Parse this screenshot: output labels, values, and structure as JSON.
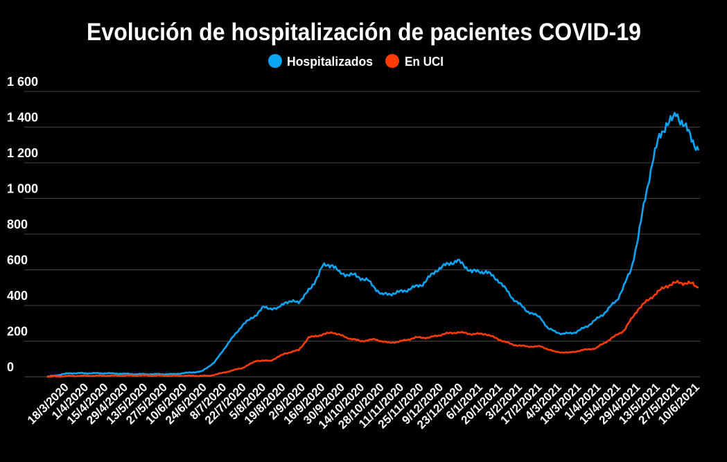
{
  "chart_data": {
    "type": "line",
    "title": "Evolución de hospitalización de pacientes COVID-19",
    "xlabel": "",
    "ylabel": "",
    "x_unit": "days since 18/3/2020",
    "ylim": [
      0,
      1600
    ],
    "grid": true,
    "legend_position": "top-center",
    "y_ticks": [
      {
        "value": 0,
        "label": "0"
      },
      {
        "value": 200,
        "label": "200"
      },
      {
        "value": 400,
        "label": "400"
      },
      {
        "value": 600,
        "label": "600"
      },
      {
        "value": 800,
        "label": "800"
      },
      {
        "value": 1000,
        "label": "1 000"
      },
      {
        "value": 1200,
        "label": "1 200"
      },
      {
        "value": 1400,
        "label": "1 400"
      },
      {
        "value": 1600,
        "label": "1 600"
      }
    ],
    "x_tick_labels": [
      "18/3/2020",
      "1/4/2020",
      "15/4/2020",
      "29/4/2020",
      "13/5/2020",
      "27/5/2020",
      "10/6/2020",
      "24/6/2020",
      "8/7/2020",
      "22/7/2020",
      "5/8/2020",
      "19/8/2020",
      "2/9/2020",
      "16/9/2020",
      "30/9/2020",
      "14/10/2020",
      "28/10/2020",
      "11/11/2020",
      "25/11/2020",
      "9/12/2020",
      "23/12/2020",
      "6/1/2021",
      "20/1/2021",
      "3/2/2021",
      "17/2/2021",
      "4/3/2021",
      "18/3/2021",
      "1/4/2021",
      "15/4/2021",
      "29/4/2021",
      "13/5/2021",
      "27/5/2021",
      "10/6/2021"
    ],
    "series": [
      {
        "name": "Hospitalizados",
        "color": "#0aa5f5",
        "points": [
          [
            -16,
            0
          ],
          [
            0,
            20
          ],
          [
            25,
            20
          ],
          [
            49,
            15
          ],
          [
            74,
            15
          ],
          [
            94,
            30
          ],
          [
            103,
            80
          ],
          [
            113,
            190
          ],
          [
            123,
            290
          ],
          [
            133,
            350
          ],
          [
            138,
            390
          ],
          [
            148,
            380
          ],
          [
            153,
            420
          ],
          [
            163,
            420
          ],
          [
            172,
            500
          ],
          [
            180,
            620
          ],
          [
            187,
            630
          ],
          [
            192,
            580
          ],
          [
            202,
            570
          ],
          [
            212,
            540
          ],
          [
            222,
            460
          ],
          [
            232,
            470
          ],
          [
            241,
            490
          ],
          [
            251,
            520
          ],
          [
            261,
            600
          ],
          [
            271,
            640
          ],
          [
            276,
            650
          ],
          [
            286,
            590
          ],
          [
            296,
            590
          ],
          [
            305,
            540
          ],
          [
            315,
            440
          ],
          [
            325,
            370
          ],
          [
            335,
            330
          ],
          [
            340,
            270
          ],
          [
            350,
            240
          ],
          [
            360,
            250
          ],
          [
            369,
            290
          ],
          [
            379,
            350
          ],
          [
            389,
            430
          ],
          [
            394,
            510
          ],
          [
            399,
            600
          ],
          [
            404,
            780
          ],
          [
            409,
            1000
          ],
          [
            414,
            1200
          ],
          [
            419,
            1340
          ],
          [
            424,
            1420
          ],
          [
            429,
            1440
          ],
          [
            431,
            1480
          ],
          [
            436,
            1420
          ],
          [
            441,
            1350
          ],
          [
            447,
            1270
          ]
        ]
      },
      {
        "name": "En UCI",
        "color": "#ff3b05",
        "points": [
          [
            -16,
            0
          ],
          [
            0,
            5
          ],
          [
            49,
            8
          ],
          [
            99,
            5
          ],
          [
            108,
            20
          ],
          [
            123,
            50
          ],
          [
            133,
            90
          ],
          [
            143,
            90
          ],
          [
            153,
            130
          ],
          [
            163,
            150
          ],
          [
            170,
            220
          ],
          [
            182,
            240
          ],
          [
            187,
            250
          ],
          [
            197,
            220
          ],
          [
            207,
            200
          ],
          [
            217,
            210
          ],
          [
            227,
            190
          ],
          [
            236,
            200
          ],
          [
            246,
            220
          ],
          [
            256,
            220
          ],
          [
            266,
            240
          ],
          [
            276,
            250
          ],
          [
            286,
            240
          ],
          [
            296,
            240
          ],
          [
            305,
            210
          ],
          [
            315,
            180
          ],
          [
            325,
            170
          ],
          [
            335,
            170
          ],
          [
            345,
            140
          ],
          [
            355,
            135
          ],
          [
            365,
            150
          ],
          [
            374,
            160
          ],
          [
            384,
            210
          ],
          [
            394,
            260
          ],
          [
            404,
            380
          ],
          [
            414,
            450
          ],
          [
            424,
            510
          ],
          [
            433,
            530
          ],
          [
            443,
            520
          ],
          [
            447,
            500
          ]
        ]
      }
    ]
  }
}
